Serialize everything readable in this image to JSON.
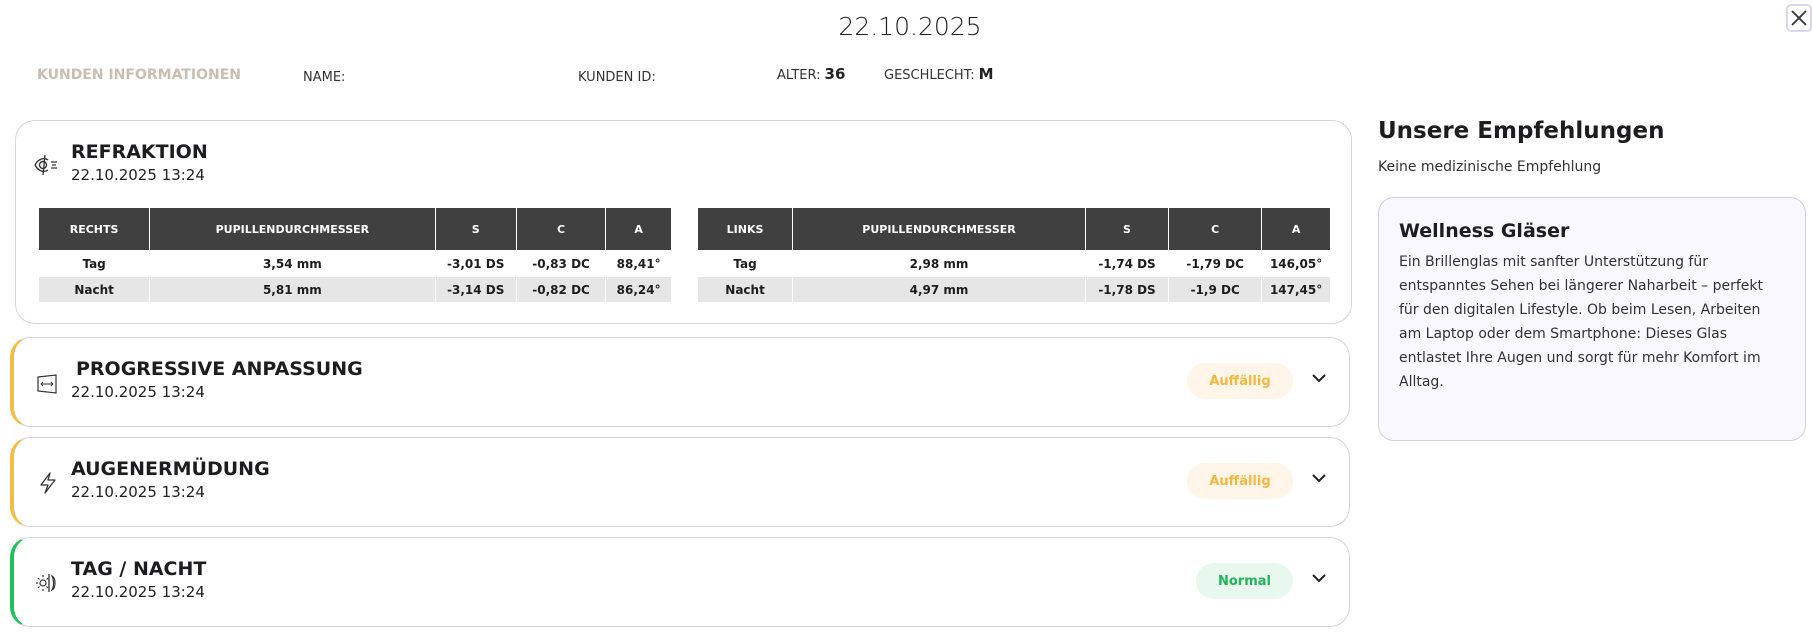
{
  "header": {
    "date": "22.10.2025"
  },
  "customer": {
    "section_label": "KUNDEN INFORMATIONEN",
    "name_label": "NAME:",
    "name_value": "",
    "id_label": "KUNDEN ID:",
    "id_value": "",
    "age_label": "ALTER:",
    "age_value": "36",
    "gender_label": "GESCHLECHT:",
    "gender_value": "M"
  },
  "refraction": {
    "title": "REFRAKTION",
    "datetime": "22.10.2025 13:24",
    "right": {
      "headers": [
        "RECHTS",
        "PUPILLENDURCHMESSER",
        "S",
        "C",
        "A"
      ],
      "rows": [
        [
          "Tag",
          "3,54 mm",
          "-3,01 DS",
          "-0,83 DC",
          "88,41°"
        ],
        [
          "Nacht",
          "5,81 mm",
          "-3,14 DS",
          "-0,82 DC",
          "86,24°"
        ]
      ]
    },
    "left": {
      "headers": [
        "LINKS",
        "PUPILLENDURCHMESSER",
        "S",
        "C",
        "A"
      ],
      "rows": [
        [
          "Tag",
          "2,98 mm",
          "-1,74 DS",
          "-1,79 DC",
          "146,05°"
        ],
        [
          "Nacht",
          "4,97 mm",
          "-1,78 DS",
          "-1,9 DC",
          "147,45°"
        ]
      ]
    }
  },
  "sections": [
    {
      "title": "PROGRESSIVE ANPASSUNG",
      "datetime": "22.10.2025 13:24",
      "status": "Auffällig",
      "icon": "progressive-lens-icon",
      "accent": "#f4bd48"
    },
    {
      "title": "AUGENERMÜDUNG",
      "datetime": "22.10.2025 13:24",
      "status": "Auffällig",
      "icon": "lightning-icon",
      "accent": "#f4bd48"
    },
    {
      "title": "TAG / NACHT",
      "datetime": "22.10.2025 13:24",
      "status": "Normal",
      "icon": "day-night-icon",
      "accent": "#21c05e"
    }
  ],
  "recommendations": {
    "title": "Unsere Empfehlungen",
    "subtitle": "Keine medizinische Empfehlung",
    "card_title": "Wellness Gläser",
    "card_text": "Ein Brillenglas mit sanfter Unterstützung für entspanntes Sehen bei längerer Naharbeit – perfekt für den digitalen Lifestyle. Ob beim Lesen, Arbeiten am Laptop oder dem Smartphone: Dieses Glas entlastet Ihre Augen und sorgt für mehr Komfort im Alltag."
  }
}
